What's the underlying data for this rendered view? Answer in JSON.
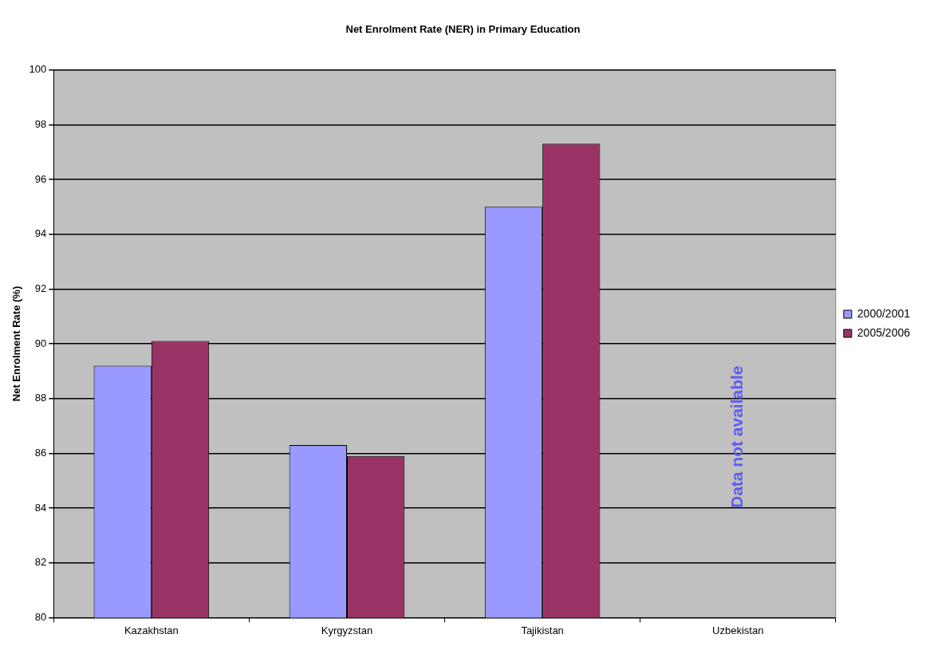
{
  "chart_data": {
    "type": "bar",
    "title": "Net Enrolment Rate (NER) in Primary Education",
    "ylabel": "Net Enrolment Rate (%)",
    "categories": [
      "Kazakhstan",
      "Kyrgyzstan",
      "Tajikistan",
      "Uzbekistan"
    ],
    "series": [
      {
        "name": "2000/2001",
        "color": "#9999ff",
        "values": [
          89.2,
          86.3,
          95.0,
          null
        ]
      },
      {
        "name": "2005/2006",
        "color": "#993366",
        "values": [
          90.1,
          85.9,
          97.3,
          null
        ]
      }
    ],
    "ylim": [
      80,
      100
    ],
    "yticks": [
      80,
      82,
      84,
      86,
      88,
      90,
      92,
      94,
      96,
      98,
      100
    ],
    "grid": "y",
    "legend": "right",
    "annotations": [
      "Data not available"
    ]
  }
}
